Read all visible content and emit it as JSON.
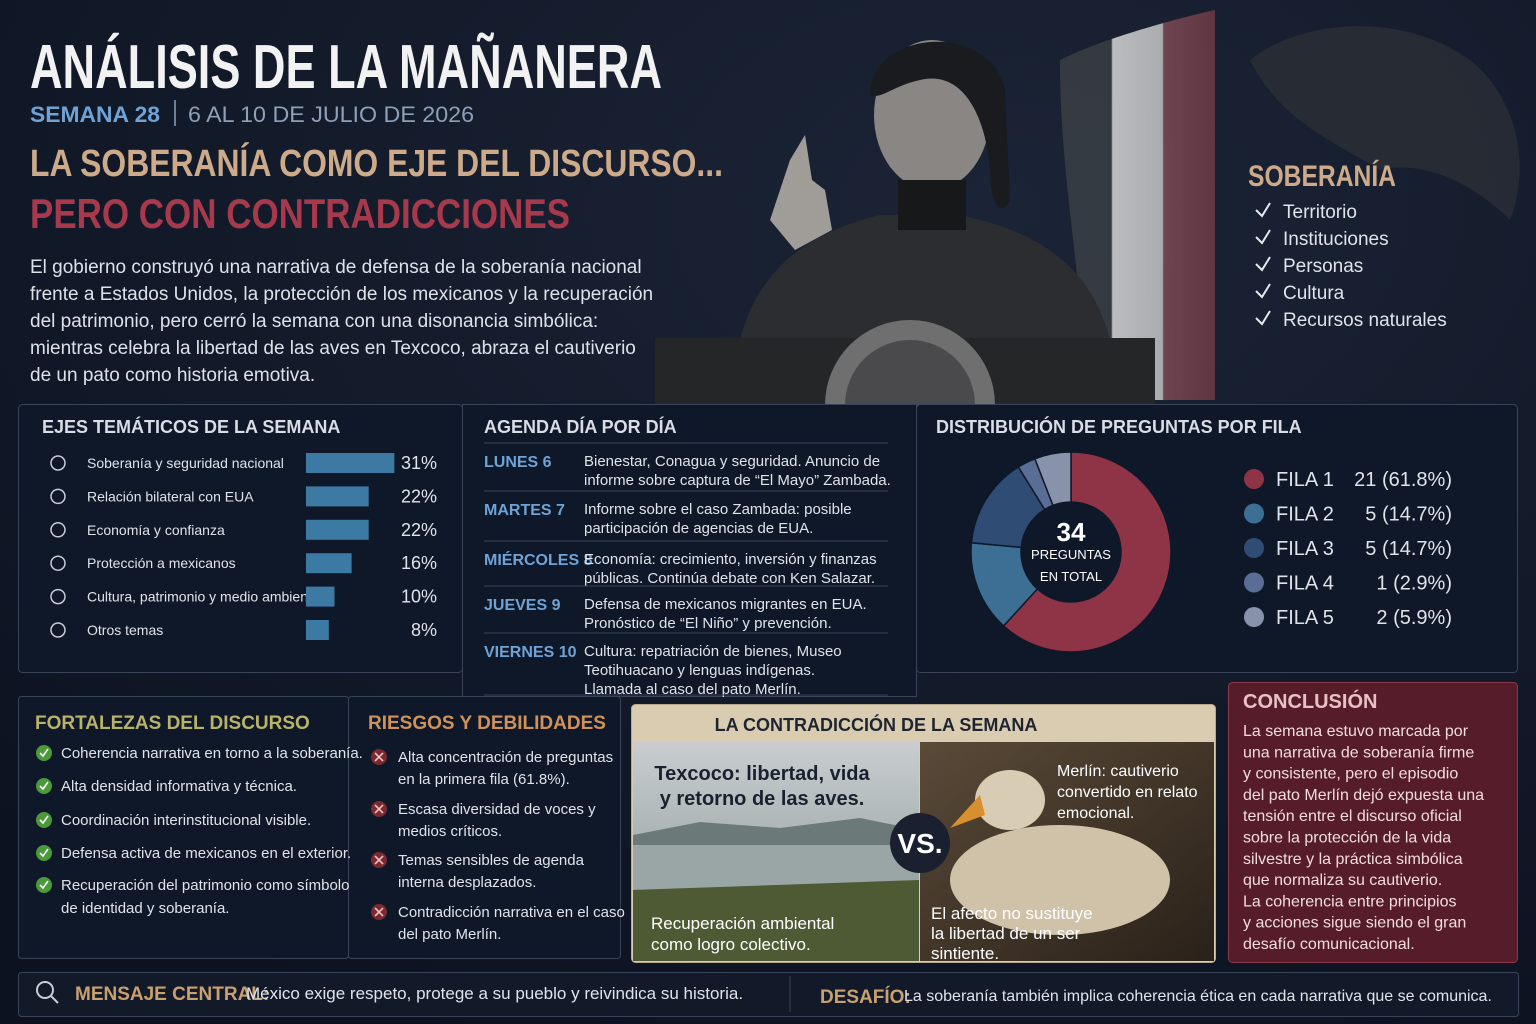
{
  "header": {
    "title": "ANÁLISIS DE LA MAÑANERA",
    "week": "SEMANA 28",
    "dates": "6 AL 10 DE JULIO DE 2026",
    "headline_1": "LA SOBERANÍA COMO EJE DEL DISCURSO...",
    "headline_2": "PERO CON CONTRADICCIONES",
    "intro": [
      "El gobierno construyó una narrativa de defensa de la soberanía nacional",
      "frente a Estados Unidos, la protección de los mexicanos y la recuperación",
      "del patrimonio, pero cerró la semana con una disonancia simbólica:",
      "mientras celebra la libertad de las aves en Texcoco, abraza el cautiverio",
      "de un pato como historia emotiva."
    ]
  },
  "sovereignty": {
    "title": "SOBERANÍA",
    "items": [
      "Territorio",
      "Instituciones",
      "Personas",
      "Cultura",
      "Recursos naturales"
    ]
  },
  "themes": {
    "title": "EJES TEMÁTICOS DE LA SEMANA",
    "labels": [
      "Soberanía y seguridad nacional",
      "Relación bilateral con EUA",
      "Economía y confianza",
      "Protección a mexicanos",
      "Cultura, patrimonio y medio ambiente",
      "Otros temas"
    ],
    "values": [
      31,
      22,
      22,
      16,
      10,
      8
    ],
    "value_labels": [
      "31%",
      "22%",
      "22%",
      "16%",
      "10%",
      "8%"
    ],
    "color": "#3d7aa3"
  },
  "agenda": {
    "title": "AGENDA DÍA POR DÍA",
    "days": [
      {
        "day": "LUNES 6",
        "lines": [
          "Bienestar, Conagua y seguridad. Anuncio de",
          "informe sobre captura de “El Mayo” Zambada."
        ]
      },
      {
        "day": "MARTES 7",
        "lines": [
          "Informe sobre el caso Zambada: posible",
          "participación de agencias de EUA."
        ]
      },
      {
        "day": "MIÉRCOLES 8",
        "lines": [
          "Economía: crecimiento, inversión y finanzas",
          "públicas. Continúa debate con Ken Salazar."
        ]
      },
      {
        "day": "JUEVES 9",
        "lines": [
          "Defensa de mexicanos migrantes en EUA.",
          "Pronóstico de “El Niño” y prevención."
        ]
      },
      {
        "day": "VIERNES 10",
        "lines": [
          "Cultura: repatriación de bienes, Museo",
          "Teotihuacano y lenguas indígenas.",
          "Llamada al caso del pato Merlín."
        ]
      }
    ]
  },
  "questions": {
    "title": "DISTRIBUCIÓN DE PREGUNTAS POR FILA",
    "total": 34,
    "total_label": [
      "PREGUNTAS",
      "EN TOTAL"
    ],
    "series": [
      {
        "name": "FILA 1",
        "color": "#8f3447",
        "value": 21,
        "value_label": "21 (61.8%)"
      },
      {
        "name": "FILA 2",
        "color": "#3d6f95",
        "value": 5,
        "value_label": "5 (14.7%)"
      },
      {
        "name": "FILA 3",
        "color": "#2f4d74",
        "value": 5,
        "value_label": "5 (14.7%)"
      },
      {
        "name": "FILA 4",
        "color": "#5a6d95",
        "value": 1,
        "value_label": "1 (2.9%)"
      },
      {
        "name": "FILA 5",
        "color": "#8892ab",
        "value": 2,
        "value_label": "2 (5.9%)"
      }
    ]
  },
  "strengths": {
    "title": "FORTALEZAS DEL DISCURSO",
    "items": [
      [
        "Coherencia narrativa en torno a la soberanía."
      ],
      [
        "Alta densidad informativa y técnica."
      ],
      [
        "Coordinación interinstitucional visible."
      ],
      [
        "Defensa activa de mexicanos en el exterior."
      ],
      [
        "Recuperación del patrimonio como símbolo",
        "de identidad y soberanía."
      ]
    ]
  },
  "risks": {
    "title": "RIESGOS Y DEBILIDADES",
    "items": [
      [
        "Alta concentración de preguntas",
        "en la primera fila (61.8%)."
      ],
      [
        "Escasa diversidad de voces y",
        "medios críticos."
      ],
      [
        "Temas sensibles de agenda",
        "interna desplazados."
      ],
      [
        "Contradicción narrativa en el caso",
        "del pato Merlín."
      ]
    ]
  },
  "contradiction": {
    "title": "LA CONTRADICCIÓN DE LA SEMANA",
    "left_caption": [
      "Texcoco: libertad, vida",
      "y retorno de las aves."
    ],
    "left_note": [
      "Recuperación ambiental",
      "como logro colectivo."
    ],
    "vs": "VS.",
    "right_caption": [
      "Merlín: cautiverio",
      "convertido en relato",
      "emocional."
    ],
    "right_note": [
      "El afecto no sustituye",
      "la libertad de un ser",
      "sintiente."
    ]
  },
  "conclusion": {
    "title": "CONCLUSIÓN",
    "lines": [
      "La semana estuvo marcada por",
      "una narrativa de soberanía firme",
      "y consistente, pero el episodio",
      "del pato Merlín dejó expuesta una",
      "tensión entre el discurso oficial",
      "sobre la protección de la vida",
      "silvestre y la práctica simbólica",
      "que normaliza su cautiverio.",
      "La coherencia entre principios",
      "y acciones sigue siendo el gran",
      "desafío comunicacional."
    ]
  },
  "footer": {
    "message_label": "MENSAJE CENTRAL:",
    "message": "México exige respeto, protege a su pueblo y reivindica su historia.",
    "challenge_label": "DESAFÍO:",
    "challenge": "La soberanía también implica coherencia ética en cada narrativa que se comunica."
  }
}
